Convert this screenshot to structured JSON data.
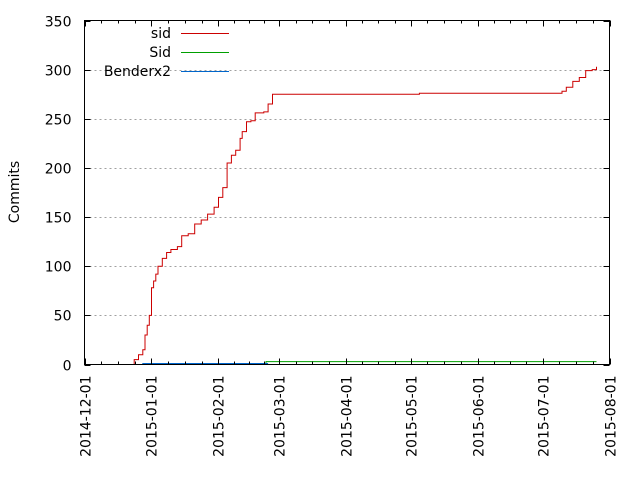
{
  "chart_data": {
    "type": "line",
    "xlabel": "",
    "ylabel": "Commits",
    "ylim": [
      0,
      350
    ],
    "xlim": [
      "2014-12-01",
      "2015-08-01"
    ],
    "x_tick_labels": [
      "2014-12-01",
      "2015-01-01",
      "2015-02-01",
      "2015-03-01",
      "2015-04-01",
      "2015-05-01",
      "2015-06-01",
      "2015-07-01",
      "2015-08-01"
    ],
    "y_ticks": [
      0,
      50,
      100,
      150,
      200,
      250,
      300,
      350
    ],
    "grid": "horizontal dotted",
    "legend_position": "top-left",
    "series": [
      {
        "name": "sid",
        "color": "#cc0000",
        "points": [
          [
            "2014-12-22",
            0
          ],
          [
            "2014-12-24",
            5
          ],
          [
            "2014-12-26",
            10
          ],
          [
            "2014-12-28",
            15
          ],
          [
            "2014-12-29",
            30
          ],
          [
            "2014-12-30",
            40
          ],
          [
            "2014-12-31",
            50
          ],
          [
            "2015-01-01",
            78
          ],
          [
            "2015-01-02",
            85
          ],
          [
            "2015-01-03",
            92
          ],
          [
            "2015-01-04",
            100
          ],
          [
            "2015-01-06",
            108
          ],
          [
            "2015-01-08",
            114
          ],
          [
            "2015-01-10",
            117
          ],
          [
            "2015-01-13",
            120
          ],
          [
            "2015-01-15",
            131
          ],
          [
            "2015-01-18",
            133
          ],
          [
            "2015-01-21",
            143
          ],
          [
            "2015-01-24",
            147
          ],
          [
            "2015-01-27",
            153
          ],
          [
            "2015-01-30",
            160
          ],
          [
            "2015-02-01",
            170
          ],
          [
            "2015-02-03",
            180
          ],
          [
            "2015-02-05",
            205
          ],
          [
            "2015-02-07",
            213
          ],
          [
            "2015-02-09",
            218
          ],
          [
            "2015-02-11",
            230
          ],
          [
            "2015-02-12",
            237
          ],
          [
            "2015-02-14",
            247
          ],
          [
            "2015-02-16",
            248
          ],
          [
            "2015-02-18",
            256
          ],
          [
            "2015-02-20",
            256
          ],
          [
            "2015-02-22",
            257
          ],
          [
            "2015-02-24",
            265
          ],
          [
            "2015-02-26",
            275
          ],
          [
            "2015-03-15",
            275
          ],
          [
            "2015-04-01",
            275
          ],
          [
            "2015-04-30",
            275
          ],
          [
            "2015-05-05",
            276
          ],
          [
            "2015-06-01",
            276
          ],
          [
            "2015-07-06",
            276
          ],
          [
            "2015-07-10",
            278
          ],
          [
            "2015-07-12",
            282
          ],
          [
            "2015-07-15",
            288
          ],
          [
            "2015-07-18",
            292
          ],
          [
            "2015-07-21",
            299
          ],
          [
            "2015-07-24",
            300
          ],
          [
            "2015-07-26",
            303
          ]
        ]
      },
      {
        "name": "Sid",
        "color": "#00a000",
        "points": [
          [
            "2014-12-22",
            0
          ],
          [
            "2015-02-22",
            0
          ],
          [
            "2015-02-23",
            3
          ],
          [
            "2015-07-26",
            3
          ]
        ]
      },
      {
        "name": "Benderx2",
        "color": "#0066cc",
        "points": [
          [
            "2014-12-22",
            0
          ],
          [
            "2014-12-28",
            1
          ],
          [
            "2015-02-20",
            1
          ],
          [
            "2015-02-24",
            1
          ]
        ]
      }
    ]
  }
}
